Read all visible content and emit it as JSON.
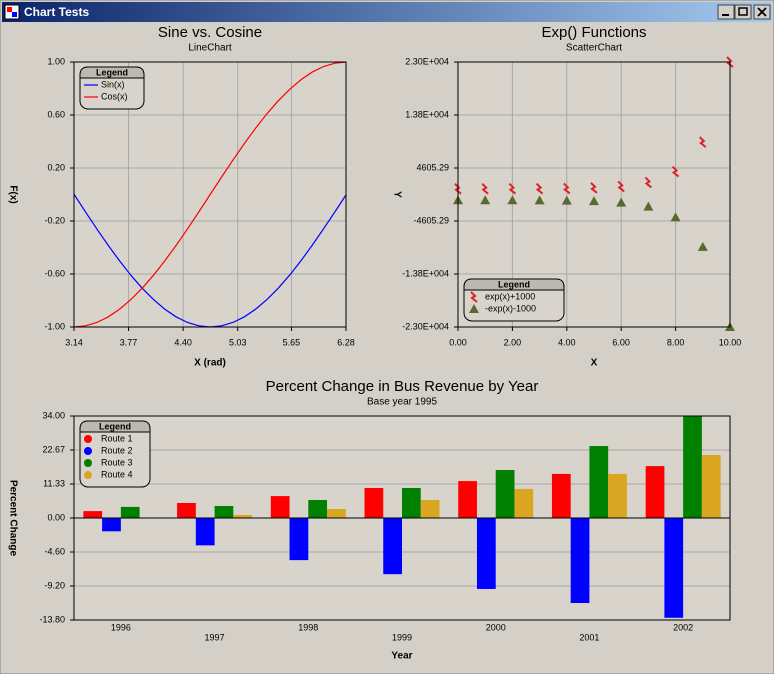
{
  "window": {
    "title": "Chart Tests"
  },
  "chart_data": [
    {
      "type": "line",
      "title": "Sine vs. Cosine",
      "subtitle": "LineChart",
      "xlabel": "X (rad)",
      "ylabel": "F(x)",
      "x": [
        3.142,
        3.272,
        3.403,
        3.534,
        3.665,
        3.796,
        3.927,
        4.058,
        4.189,
        4.32,
        4.451,
        4.581,
        4.712,
        4.843,
        4.974,
        5.105,
        5.236,
        5.367,
        5.498,
        5.629,
        5.76,
        5.89,
        6.021,
        6.152,
        6.283
      ],
      "series": [
        {
          "name": "Sin(x)",
          "color": "#0000ff",
          "values": [
            0,
            -0.131,
            -0.259,
            -0.383,
            -0.5,
            -0.609,
            -0.707,
            -0.793,
            -0.866,
            -0.924,
            -0.966,
            -0.991,
            -1,
            -0.991,
            -0.966,
            -0.924,
            -0.866,
            -0.793,
            -0.707,
            -0.609,
            -0.5,
            -0.383,
            -0.259,
            -0.131,
            0
          ]
        },
        {
          "name": "Cos(x)",
          "color": "#ff0000",
          "values": [
            -1,
            -0.991,
            -0.966,
            -0.924,
            -0.866,
            -0.793,
            -0.707,
            -0.609,
            -0.5,
            -0.383,
            -0.259,
            -0.131,
            0,
            0.131,
            0.259,
            0.383,
            0.5,
            0.609,
            0.707,
            0.793,
            0.866,
            0.924,
            0.966,
            0.991,
            1
          ]
        }
      ],
      "xlim": [
        3.14,
        6.28
      ],
      "xticks": [
        3.14,
        3.77,
        {
          "value": 4.4,
          "label": "4.40"
        },
        5.03,
        5.65,
        6.28
      ],
      "ylim": [
        -1,
        1
      ],
      "yticks": [
        {
          "value": -1,
          "label": "-1.00"
        },
        {
          "value": -0.6,
          "label": "-0.60"
        },
        {
          "value": -0.2,
          "label": "-0.20"
        },
        {
          "value": 0.2,
          "label": "0.20"
        },
        {
          "value": 0.6,
          "label": "0.60"
        },
        {
          "value": 1,
          "label": "1.00"
        }
      ],
      "grid": true,
      "legend": "upper left",
      "legend_title": "Legend"
    },
    {
      "type": "scatter",
      "title": "Exp() Functions",
      "subtitle": "ScatterChart",
      "xlabel": "X",
      "ylabel": "Y",
      "x": [
        0,
        1,
        2,
        3,
        4,
        5,
        6,
        7,
        8,
        9,
        10
      ],
      "series": [
        {
          "name": "exp(x)+1000",
          "color": "#e0202a",
          "marker": "bolt",
          "values": [
            1001,
            1002.7,
            1007.4,
            1020.1,
            1054.6,
            1148.4,
            1403.4,
            2096.6,
            3981,
            9103.1,
            23026.5
          ]
        },
        {
          "name": "-exp(x)-1000",
          "color": "#556b2f",
          "marker": "triangle",
          "values": [
            -1001,
            -1002.7,
            -1007.4,
            -1020.1,
            -1054.6,
            -1148.4,
            -1403.4,
            -2096.6,
            -3981,
            -9103.1,
            -23026.5
          ]
        }
      ],
      "xlim": [
        0,
        10
      ],
      "xticks": [
        {
          "value": 0,
          "label": "0.00"
        },
        {
          "value": 2,
          "label": "2.00"
        },
        {
          "value": 4,
          "label": "4.00"
        },
        {
          "value": 6,
          "label": "6.00"
        },
        {
          "value": 8,
          "label": "8.00"
        },
        {
          "value": 10,
          "label": "10.00"
        }
      ],
      "ylim": [
        -23026.47,
        23026.47
      ],
      "yticks": [
        {
          "value": -23026.47,
          "label": "-2.30E+004"
        },
        {
          "value": -13815.88,
          "label": "-1.38E+004"
        },
        -4605.29,
        4605.29,
        {
          "value": 13815.88,
          "label": "1.38E+004"
        },
        {
          "value": 23026.47,
          "label": "2.30E+004"
        }
      ],
      "grid": true,
      "legend": "lower left",
      "legend_title": "Legend"
    },
    {
      "type": "bar",
      "title": "Percent Change in Bus Revenue by Year",
      "subtitle": "Base year 1995",
      "xlabel": "Year",
      "ylabel": "Percent Change",
      "categories": [
        "1996",
        "1997",
        "1998",
        "1999",
        "2000",
        "2001",
        "2002"
      ],
      "series": [
        {
          "name": "Route 1",
          "color": "#ff0000",
          "values": [
            2.3,
            5,
            7.3,
            10,
            12.3,
            14.7,
            17.3
          ]
        },
        {
          "name": "Route 2",
          "color": "#0000ff",
          "values": [
            -1.8,
            -3.7,
            -5.7,
            -7.6,
            -9.6,
            -11.5,
            -13.5
          ]
        },
        {
          "name": "Route 3",
          "color": "#008000",
          "values": [
            3.7,
            4,
            6,
            10,
            16,
            24,
            34
          ]
        },
        {
          "name": "Route 4",
          "color": "#daa520",
          "values": [
            0,
            1,
            3,
            6,
            9.7,
            14.7,
            21
          ]
        }
      ],
      "ylim": [
        -13.8,
        34
      ],
      "yticks": [
        {
          "value": -13.8,
          "label": "-13.80"
        },
        {
          "value": -9.2,
          "label": "-9.20"
        },
        {
          "value": -4.6,
          "label": "-4.60"
        },
        {
          "value": 0,
          "label": "0.00"
        },
        {
          "value": 11.33,
          "label": "11.33"
        },
        {
          "value": 22.67,
          "label": "22.67"
        },
        {
          "value": 34,
          "label": "34.00"
        }
      ],
      "grid": true,
      "legend": "upper left",
      "legend_title": "Legend"
    }
  ]
}
